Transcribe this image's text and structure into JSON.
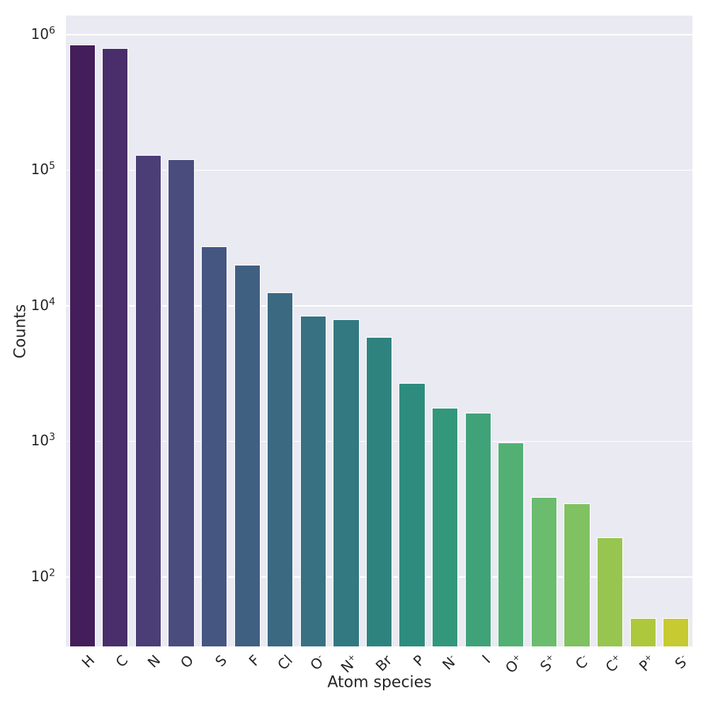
{
  "figure": {
    "background": "#ffffff",
    "plot_background": "#eaeaf2",
    "grid_color": "#ffffff",
    "text_color": "#262626"
  },
  "chart_data": {
    "type": "bar",
    "title": "",
    "xlabel": "Atom species",
    "ylabel": "Counts",
    "yscale": "log",
    "grid": true,
    "legend": false,
    "xtick_rotation_deg": 45,
    "ylim": [
      30.8,
      1380000
    ],
    "categories": [
      "H",
      "C",
      "N",
      "O",
      "S",
      "F",
      "Cl",
      "O^-",
      "N^+",
      "Br",
      "P",
      "N^-",
      "I",
      "O^+",
      "S^+",
      "C^-",
      "C^+",
      "P^+",
      "S^-"
    ],
    "values": [
      845000,
      790000,
      130000,
      121000,
      27300,
      20100,
      12600,
      8450,
      7950,
      5900,
      2700,
      1760,
      1620,
      980,
      390,
      350,
      196,
      50,
      50
    ],
    "bar_colors": [
      "#441d5b",
      "#492e6b",
      "#4b3e77",
      "#4a4c7e",
      "#455681",
      "#406082",
      "#3b6982",
      "#377182",
      "#327981",
      "#2f837f",
      "#2e8c7e",
      "#33977c",
      "#3fa279",
      "#53b074",
      "#6bbc6e",
      "#80c161",
      "#97c550",
      "#aec83d",
      "#c7ca31"
    ],
    "yticks": [
      {
        "label": "10^2",
        "value": 100
      },
      {
        "label": "10^3",
        "value": 1000
      },
      {
        "label": "10^4",
        "value": 10000
      },
      {
        "label": "10^5",
        "value": 100000
      },
      {
        "label": "10^6",
        "value": 1000000
      }
    ]
  }
}
